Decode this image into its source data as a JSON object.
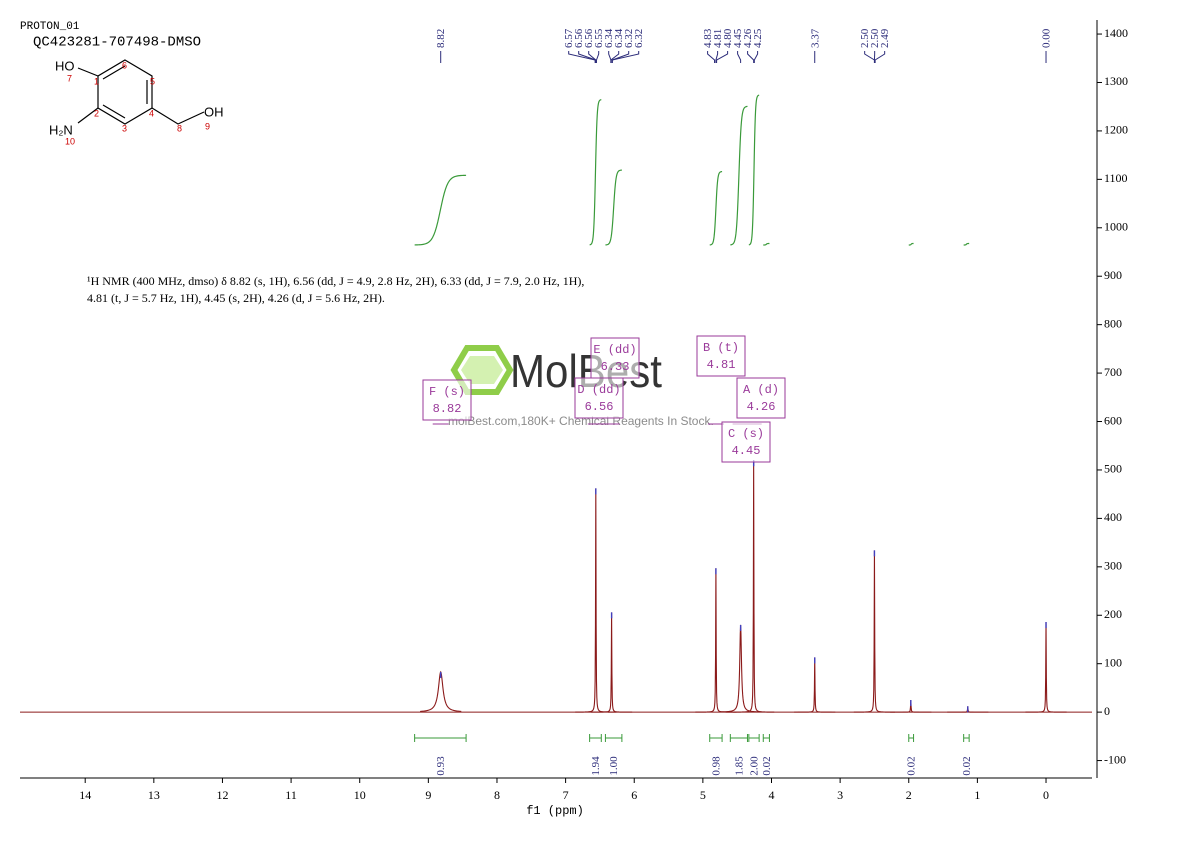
{
  "header": {
    "experiment": "PROTON_01",
    "sample": "QC423281-707498-DMSO"
  },
  "structure": {
    "labels": [
      "HO",
      "7",
      "1",
      "6",
      "5",
      "2",
      "3",
      "4",
      "8",
      "OH",
      "9",
      "H₂N",
      "10"
    ]
  },
  "description": [
    "¹H NMR (400 MHz, dmso) δ 8.82 (s, 1H), 6.56 (dd, J = 4.9, 2.8 Hz, 2H), 6.33 (dd, J = 7.9, 2.0 Hz, 1H),",
    "4.81 (t, J = 5.7 Hz, 1H), 4.45 (s, 2H), 4.26 (d, J = 5.6 Hz, 2H)."
  ],
  "watermark": {
    "brand": "MolBest",
    "tagline": "molBest.com,180K+ Chemical Reagents In Stock."
  },
  "chart_data": {
    "type": "nmr",
    "xlabel": "f1 (ppm)",
    "xlim": [
      14.95,
      -0.67
    ],
    "ylim": [
      -136,
      1429
    ],
    "xticks": [
      14,
      13,
      12,
      11,
      10,
      9,
      8,
      7,
      6,
      5,
      4,
      3,
      2,
      1,
      0
    ],
    "yticks": [
      -100,
      0,
      100,
      200,
      300,
      400,
      500,
      600,
      700,
      800,
      900,
      1000,
      1100,
      1200,
      1300,
      1400
    ],
    "color": "#8b1a1a",
    "integral_color": "#3a9a3a",
    "label_color": "#2c2c7a",
    "box_color": "#9a3a9a",
    "peaks": {
      "x": [
        8.82,
        6.56,
        6.33,
        4.81,
        4.45,
        4.26,
        3.37,
        2.5,
        1.97,
        1.14,
        0
      ],
      "values": [
        83,
        462,
        206,
        297,
        180,
        520,
        113,
        334,
        25,
        12,
        186
      ]
    },
    "peak_list": [
      8.82,
      6.57,
      6.56,
      6.56,
      6.55,
      6.34,
      6.34,
      6.32,
      6.32,
      4.83,
      4.81,
      {
        "value": 4.8,
        "label": "4.80"
      },
      4.45,
      4.26,
      4.25,
      3.37,
      {
        "value": 2.5,
        "label": "2.50"
      },
      {
        "value": 2.5,
        "label": "2.50"
      },
      2.49,
      {
        "value": 0,
        "label": "0.00"
      }
    ],
    "integrals": [
      {
        "from": 9.2,
        "to": 8.45,
        "value": 0.93
      },
      {
        "from": 6.65,
        "to": 6.48,
        "value": 1.94
      },
      {
        "from": 6.42,
        "to": 6.18,
        "value": {
          "value": 1,
          "label": "1.00"
        }
      },
      {
        "from": 4.9,
        "to": 4.72,
        "value": 0.98
      },
      {
        "from": 4.6,
        "to": 4.35,
        "value": 1.85
      },
      {
        "from": 4.33,
        "to": 4.18,
        "value": {
          "value": 2,
          "label": "2.00"
        }
      },
      {
        "from": 4.12,
        "to": 4.03,
        "value": 0.02
      },
      {
        "from": 2.0,
        "to": 1.93,
        "value": 0.02
      },
      {
        "from": 1.2,
        "to": 1.12,
        "value": 0.02
      }
    ],
    "multiplets": [
      {
        "label": "F (s)",
        "shift": 8.82
      },
      {
        "label": "E (dd)",
        "shift": 6.33
      },
      {
        "label": "D (dd)",
        "shift": 6.56
      },
      {
        "label": "B (t)",
        "shift": 4.81
      },
      {
        "label": "A (d)",
        "shift": 4.26
      },
      {
        "label": "C (s)",
        "shift": 4.45
      }
    ]
  }
}
